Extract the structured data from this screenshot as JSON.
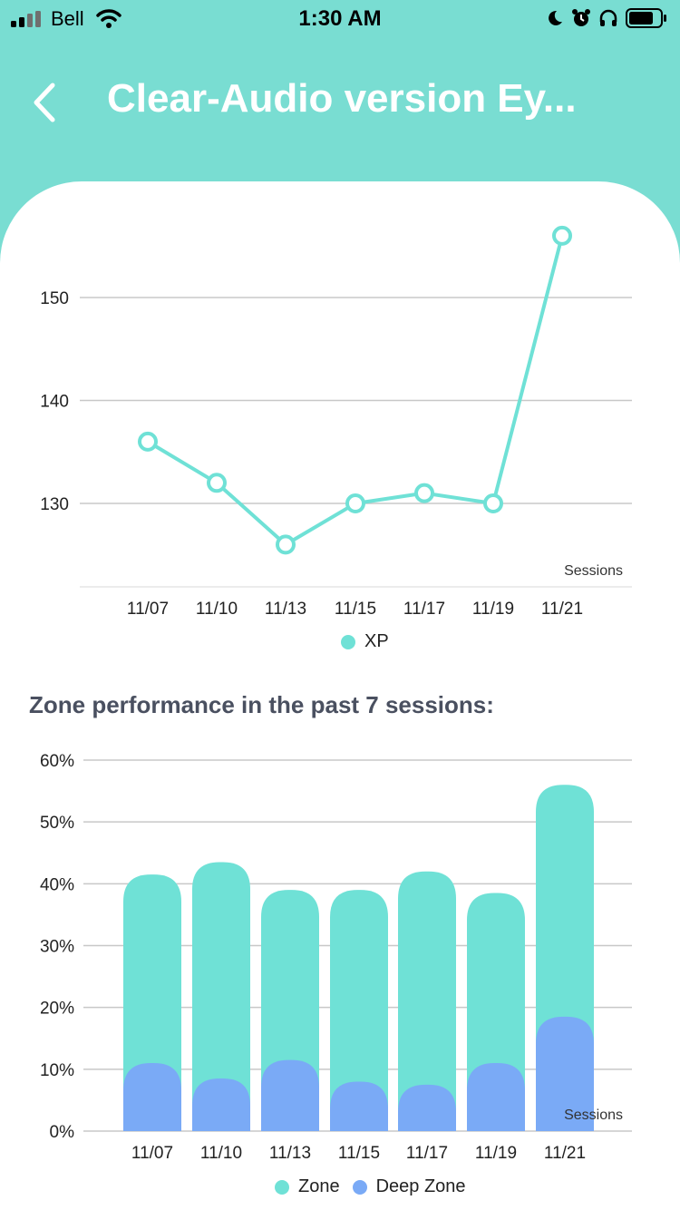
{
  "status_bar": {
    "carrier": "Bell",
    "time": "1:30 AM"
  },
  "header": {
    "title": "Clear-Audio version  Ey..."
  },
  "colors": {
    "accent": "#79ddd2",
    "zone": "#6fe1d6",
    "deep_zone": "#7aaaf6"
  },
  "section": {
    "zone_title": "Zone performance in the past 7 sessions:"
  },
  "chart_data": [
    {
      "type": "line",
      "categories": [
        "11/07",
        "11/10",
        "11/13",
        "11/15",
        "11/17",
        "11/19",
        "11/21"
      ],
      "series": [
        {
          "name": "XP",
          "values": [
            136,
            132,
            126,
            130,
            131,
            130,
            156
          ]
        }
      ],
      "xlabel": "Sessions",
      "ylabel": "",
      "y_ticks": [
        130,
        140,
        150
      ],
      "legend": [
        "XP"
      ]
    },
    {
      "type": "bar",
      "categories": [
        "11/07",
        "11/10",
        "11/13",
        "11/15",
        "11/17",
        "11/19",
        "11/21"
      ],
      "series": [
        {
          "name": "Zone",
          "values": [
            41.5,
            43.5,
            39,
            39,
            42,
            38.5,
            56
          ]
        },
        {
          "name": "Deep Zone",
          "values": [
            11,
            8.5,
            11.5,
            8,
            7.5,
            11,
            18.5
          ]
        }
      ],
      "xlabel": "Sessions",
      "ylabel": "",
      "y_ticks": [
        "0%",
        "10%",
        "20%",
        "30%",
        "40%",
        "50%",
        "60%"
      ],
      "ylim": [
        0,
        60
      ],
      "legend": [
        "Zone",
        "Deep Zone"
      ]
    }
  ]
}
